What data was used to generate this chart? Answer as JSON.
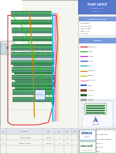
{
  "bg": "#f5f5f0",
  "sheet_bg": "#ffffff",
  "panel_green_dark": "#3a8a50",
  "panel_green_mid": "#55aa70",
  "panel_green_light": "#88cc99",
  "panel_blue": "#8899cc",
  "road_orange": "#cc8800",
  "line_green": "#22bb22",
  "line_cyan": "#00bbcc",
  "line_magenta": "#cc22cc",
  "line_blue": "#3355bb",
  "line_red": "#dd2222",
  "line_pink": "#ff88aa",
  "line_yellow": "#cccc00",
  "right_header_bg": "#5577cc",
  "right_header2_bg": "#7799dd",
  "right_box_bg": "#eef2f8",
  "right_border": "#aabbdd",
  "table_line": "#aaaaaa",
  "text_dark": "#222233",
  "text_mid": "#444455",
  "logo_blue": "#0044aa",
  "logo_green": "#118833",
  "emerald_green": "#226633"
}
